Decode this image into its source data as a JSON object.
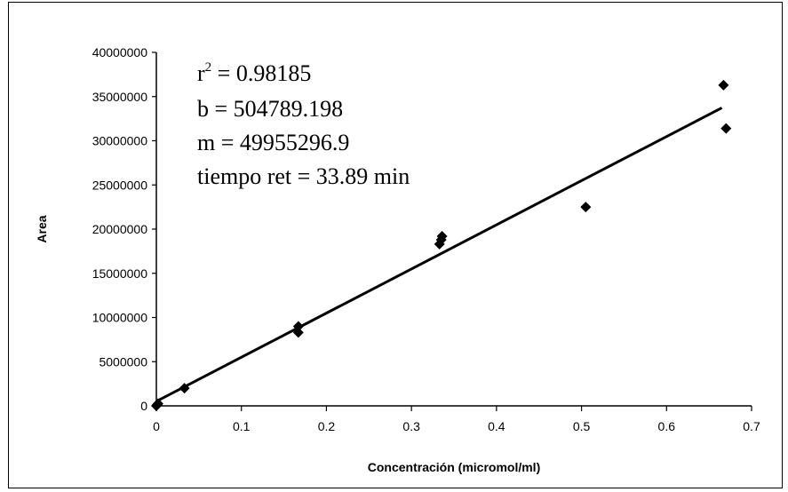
{
  "chart_data": {
    "type": "scatter",
    "xlabel": "Concentración (micromol/ml)",
    "ylabel": "Area",
    "xlim": [
      0,
      0.7
    ],
    "ylim": [
      0,
      40000000
    ],
    "x_ticks": [
      "0",
      "0.1",
      "0.2",
      "0.3",
      "0.4",
      "0.5",
      "0.6",
      "0.7"
    ],
    "y_ticks": [
      "0",
      "5000000",
      "10000000",
      "15000000",
      "20000000",
      "25000000",
      "30000000",
      "35000000",
      "40000000"
    ],
    "grid": false,
    "legend": "none",
    "marker": "diamond",
    "points": [
      {
        "x": 0.0,
        "y": 0
      },
      {
        "x": 0.001,
        "y": 120000
      },
      {
        "x": 0.002,
        "y": 250000
      },
      {
        "x": 0.033,
        "y": 2000000
      },
      {
        "x": 0.167,
        "y": 8300000
      },
      {
        "x": 0.167,
        "y": 9000000
      },
      {
        "x": 0.333,
        "y": 18300000
      },
      {
        "x": 0.335,
        "y": 18800000
      },
      {
        "x": 0.336,
        "y": 19200000
      },
      {
        "x": 0.505,
        "y": 22500000
      },
      {
        "x": 0.667,
        "y": 36300000
      },
      {
        "x": 0.67,
        "y": 31400000
      }
    ],
    "fit_line": {
      "x": [
        0,
        0.665
      ],
      "y": [
        504789.198,
        33724012.1
      ]
    },
    "annotations": {
      "r2_base": "r",
      "r2_exp": "2",
      "r2_value": " = 0.98185",
      "b": "b = 504789.198",
      "m": "m = 49955296.9",
      "tiempo": "tiempo ret = 33.89 min"
    }
  }
}
